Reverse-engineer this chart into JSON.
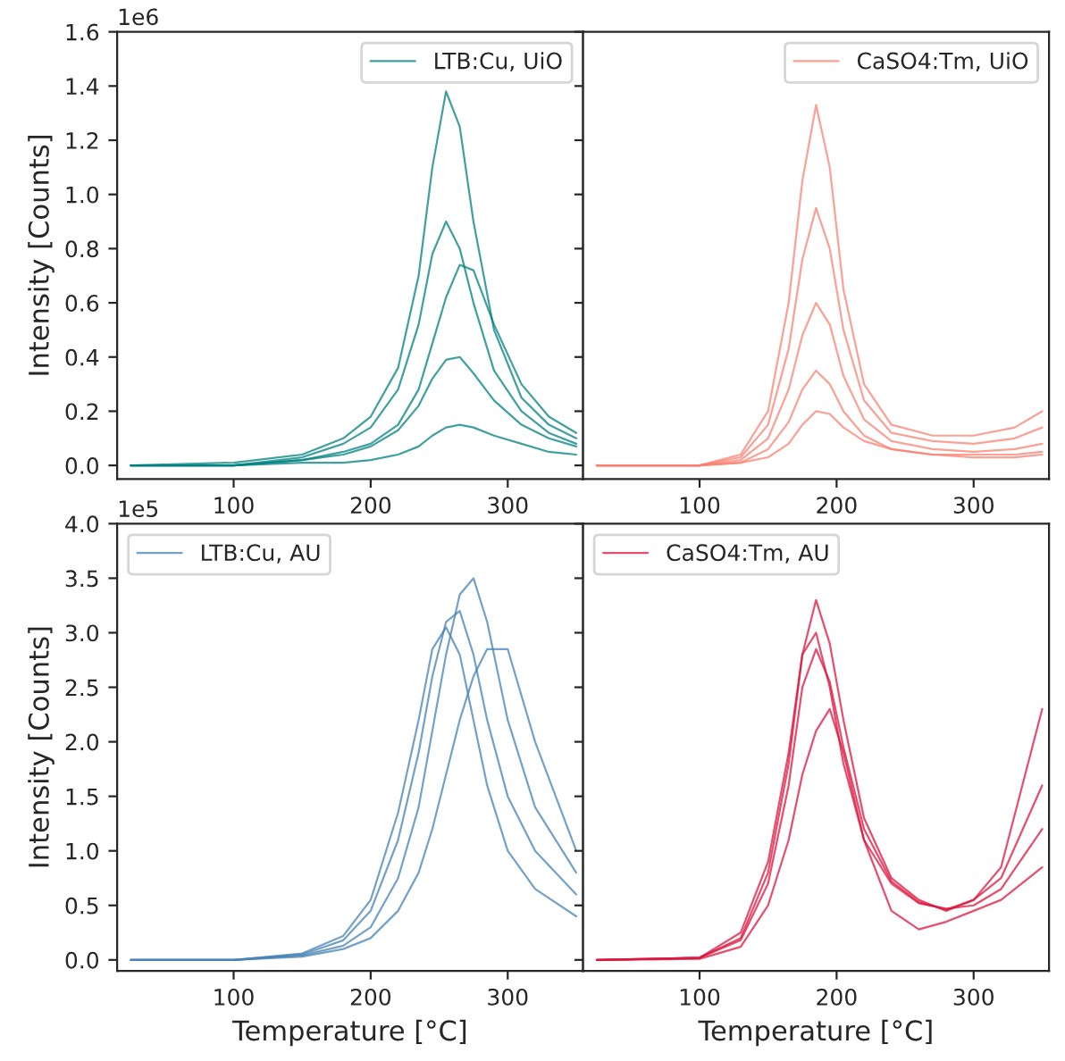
{
  "chart_data": [
    {
      "type": "line",
      "ylabel": "Intensity [Counts]",
      "annotations": [
        "1e6"
      ],
      "legend": "top right",
      "xlim": [
        15,
        355
      ],
      "xticks": [
        100,
        200,
        300
      ],
      "ylim": [
        -0.05,
        1.6
      ],
      "yticks": [
        {
          "value": 0,
          "label": "0.0"
        },
        0.2,
        0.4,
        0.6,
        0.8,
        {
          "value": 1,
          "label": "1.0"
        },
        1.2,
        1.4,
        1.6
      ],
      "x": [
        25,
        100,
        150,
        180,
        200,
        220,
        235,
        245,
        255,
        265,
        275,
        290,
        310,
        330,
        350
      ],
      "series": [
        {
          "name": "LTB:Cu, UiO",
          "color": "#008080",
          "values": [
            0,
            0.01,
            0.04,
            0.1,
            0.18,
            0.36,
            0.7,
            1.1,
            1.38,
            1.25,
            0.9,
            0.5,
            0.25,
            0.15,
            0.1
          ]
        },
        {
          "color": "#008080",
          "values": [
            0,
            0,
            0.03,
            0.08,
            0.14,
            0.28,
            0.52,
            0.78,
            0.9,
            0.8,
            0.6,
            0.35,
            0.2,
            0.12,
            0.08
          ]
        },
        {
          "color": "#008080",
          "values": [
            0,
            0,
            0.02,
            0.05,
            0.08,
            0.15,
            0.28,
            0.45,
            0.62,
            0.74,
            0.72,
            0.52,
            0.3,
            0.18,
            0.12
          ]
        },
        {
          "color": "#008080",
          "values": [
            0,
            0,
            0.02,
            0.04,
            0.07,
            0.13,
            0.22,
            0.32,
            0.39,
            0.4,
            0.34,
            0.24,
            0.15,
            0.1,
            0.07
          ]
        },
        {
          "color": "#008080",
          "values": [
            0,
            0,
            0.01,
            0.01,
            0.02,
            0.04,
            0.07,
            0.11,
            0.14,
            0.15,
            0.14,
            0.11,
            0.08,
            0.05,
            0.04
          ]
        }
      ]
    },
    {
      "type": "line",
      "legend": "top right",
      "tick_labels": "x",
      "xlim": [
        15,
        355
      ],
      "xticks": [
        100,
        200,
        300
      ],
      "ylim": [
        -0.05,
        1.6
      ],
      "yticks": [
        0,
        0.2,
        0.4,
        0.6,
        0.8,
        1,
        1.2,
        1.4,
        1.6
      ],
      "x": [
        25,
        100,
        130,
        150,
        165,
        175,
        185,
        195,
        205,
        220,
        240,
        270,
        300,
        330,
        350
      ],
      "series": [
        {
          "name": "CaSO4:Tm, UiO",
          "color": "#fa8072",
          "values": [
            0,
            0,
            0.04,
            0.2,
            0.6,
            1.05,
            1.33,
            1.1,
            0.65,
            0.3,
            0.15,
            0.11,
            0.11,
            0.14,
            0.2
          ]
        },
        {
          "color": "#fa8072",
          "values": [
            0,
            0,
            0.03,
            0.15,
            0.43,
            0.76,
            0.95,
            0.8,
            0.5,
            0.24,
            0.12,
            0.09,
            0.08,
            0.1,
            0.14
          ]
        },
        {
          "color": "#fa8072",
          "values": [
            0,
            0,
            0.02,
            0.1,
            0.28,
            0.48,
            0.6,
            0.52,
            0.33,
            0.17,
            0.09,
            0.06,
            0.05,
            0.06,
            0.08
          ]
        },
        {
          "color": "#fa8072",
          "values": [
            0,
            0,
            0.01,
            0.06,
            0.16,
            0.28,
            0.35,
            0.3,
            0.2,
            0.11,
            0.06,
            0.04,
            0.04,
            0.04,
            0.05
          ]
        },
        {
          "color": "#fa8072",
          "values": [
            0,
            0,
            0.01,
            0.03,
            0.08,
            0.15,
            0.2,
            0.19,
            0.14,
            0.09,
            0.06,
            0.04,
            0.03,
            0.03,
            0.04
          ]
        }
      ]
    },
    {
      "type": "line",
      "ylabel": "Intensity [Counts]",
      "xlabel": "Temperature [°C]",
      "annotations": [
        "1e5"
      ],
      "legend": "top left",
      "xlim": [
        15,
        355
      ],
      "xticks": [
        100,
        200,
        300
      ],
      "ylim": [
        -0.1,
        4.0
      ],
      "yticks": [
        {
          "value": 0,
          "label": "0.0"
        },
        0.5,
        {
          "value": 1,
          "label": "1.0"
        },
        1.5,
        {
          "value": 2,
          "label": "2.0"
        },
        2.5,
        {
          "value": 3,
          "label": "3.0"
        },
        3.5,
        {
          "value": 4,
          "label": "4.0"
        }
      ],
      "x": [
        25,
        100,
        150,
        180,
        200,
        220,
        235,
        245,
        255,
        265,
        275,
        285,
        300,
        320,
        350
      ],
      "series": [
        {
          "name": "LTB:Cu, AU",
          "color": "#4682b4",
          "values": [
            0,
            0,
            0.04,
            0.13,
            0.3,
            0.75,
            1.4,
            2.1,
            2.8,
            3.35,
            3.5,
            3.1,
            2.2,
            1.4,
            0.8
          ]
        },
        {
          "color": "#4682b4",
          "values": [
            0,
            0,
            0.05,
            0.18,
            0.45,
            1.1,
            1.9,
            2.6,
            3.1,
            3.2,
            2.8,
            2.2,
            1.5,
            1.0,
            0.6
          ]
        },
        {
          "color": "#4682b4",
          "values": [
            0,
            0,
            0.03,
            0.1,
            0.2,
            0.45,
            0.8,
            1.2,
            1.7,
            2.2,
            2.6,
            2.85,
            2.85,
            2.0,
            1.0
          ]
        },
        {
          "color": "#4682b4",
          "values": [
            0,
            0,
            0.06,
            0.22,
            0.55,
            1.35,
            2.2,
            2.85,
            3.05,
            2.8,
            2.2,
            1.6,
            1.0,
            0.65,
            0.4
          ]
        }
      ]
    },
    {
      "type": "line",
      "xlabel": "Temperature [°C]",
      "legend": "top left",
      "tick_labels": "x",
      "xlim": [
        15,
        355
      ],
      "xticks": [
        100,
        200,
        300
      ],
      "ylim": [
        -0.1,
        4.0
      ],
      "yticks": [
        0,
        0.5,
        1,
        1.5,
        2,
        2.5,
        3,
        3.5,
        4
      ],
      "x": [
        25,
        100,
        130,
        150,
        165,
        175,
        185,
        195,
        205,
        220,
        240,
        260,
        280,
        300,
        320,
        350
      ],
      "series": [
        {
          "name": "CaSO4:Tm, AU",
          "color": "#dc143c",
          "values": [
            0,
            0.02,
            0.2,
            0.8,
            1.8,
            2.8,
            3.3,
            2.9,
            2.2,
            1.3,
            0.75,
            0.55,
            0.45,
            0.55,
            0.85,
            2.3
          ]
        },
        {
          "color": "#dc143c",
          "values": [
            0,
            0.02,
            0.25,
            0.9,
            1.9,
            2.8,
            3.0,
            2.5,
            1.8,
            1.1,
            0.7,
            0.52,
            0.47,
            0.5,
            0.65,
            1.2
          ]
        },
        {
          "color": "#dc143c",
          "values": [
            0,
            0.01,
            0.12,
            0.5,
            1.1,
            1.7,
            2.1,
            2.3,
            1.9,
            1.1,
            0.45,
            0.28,
            0.35,
            0.45,
            0.55,
            0.85
          ]
        },
        {
          "color": "#dc143c",
          "values": [
            0,
            0.02,
            0.18,
            0.7,
            1.6,
            2.5,
            2.85,
            2.55,
            1.95,
            1.2,
            0.72,
            0.53,
            0.46,
            0.55,
            0.75,
            1.6
          ]
        }
      ]
    }
  ]
}
